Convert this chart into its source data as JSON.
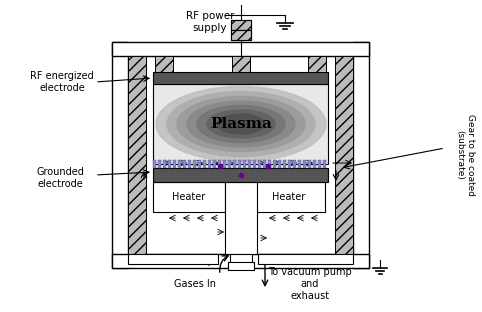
{
  "bg_color": "#ffffff",
  "labels": {
    "rf_power": "RF power\nsupply",
    "rf_electrode": "RF energized\nelectrode",
    "grounded": "Grounded\nelectrode",
    "plasma": "Plasma",
    "heater_left": "Heater",
    "heater_right": "Heater",
    "gases_in": "Gases In",
    "vacuum": "To vacuum pump\nand\nexhaust",
    "gear": "Gear to be coated\n(substrate)"
  },
  "colors": {
    "dark_electrode": "#555555",
    "light_gray": "#cccccc",
    "mid_gray": "#999999",
    "dark_gray": "#666666",
    "purple": "#660099",
    "white": "#ffffff",
    "black": "#000000",
    "hatch_gray": "#bbbbbb"
  }
}
